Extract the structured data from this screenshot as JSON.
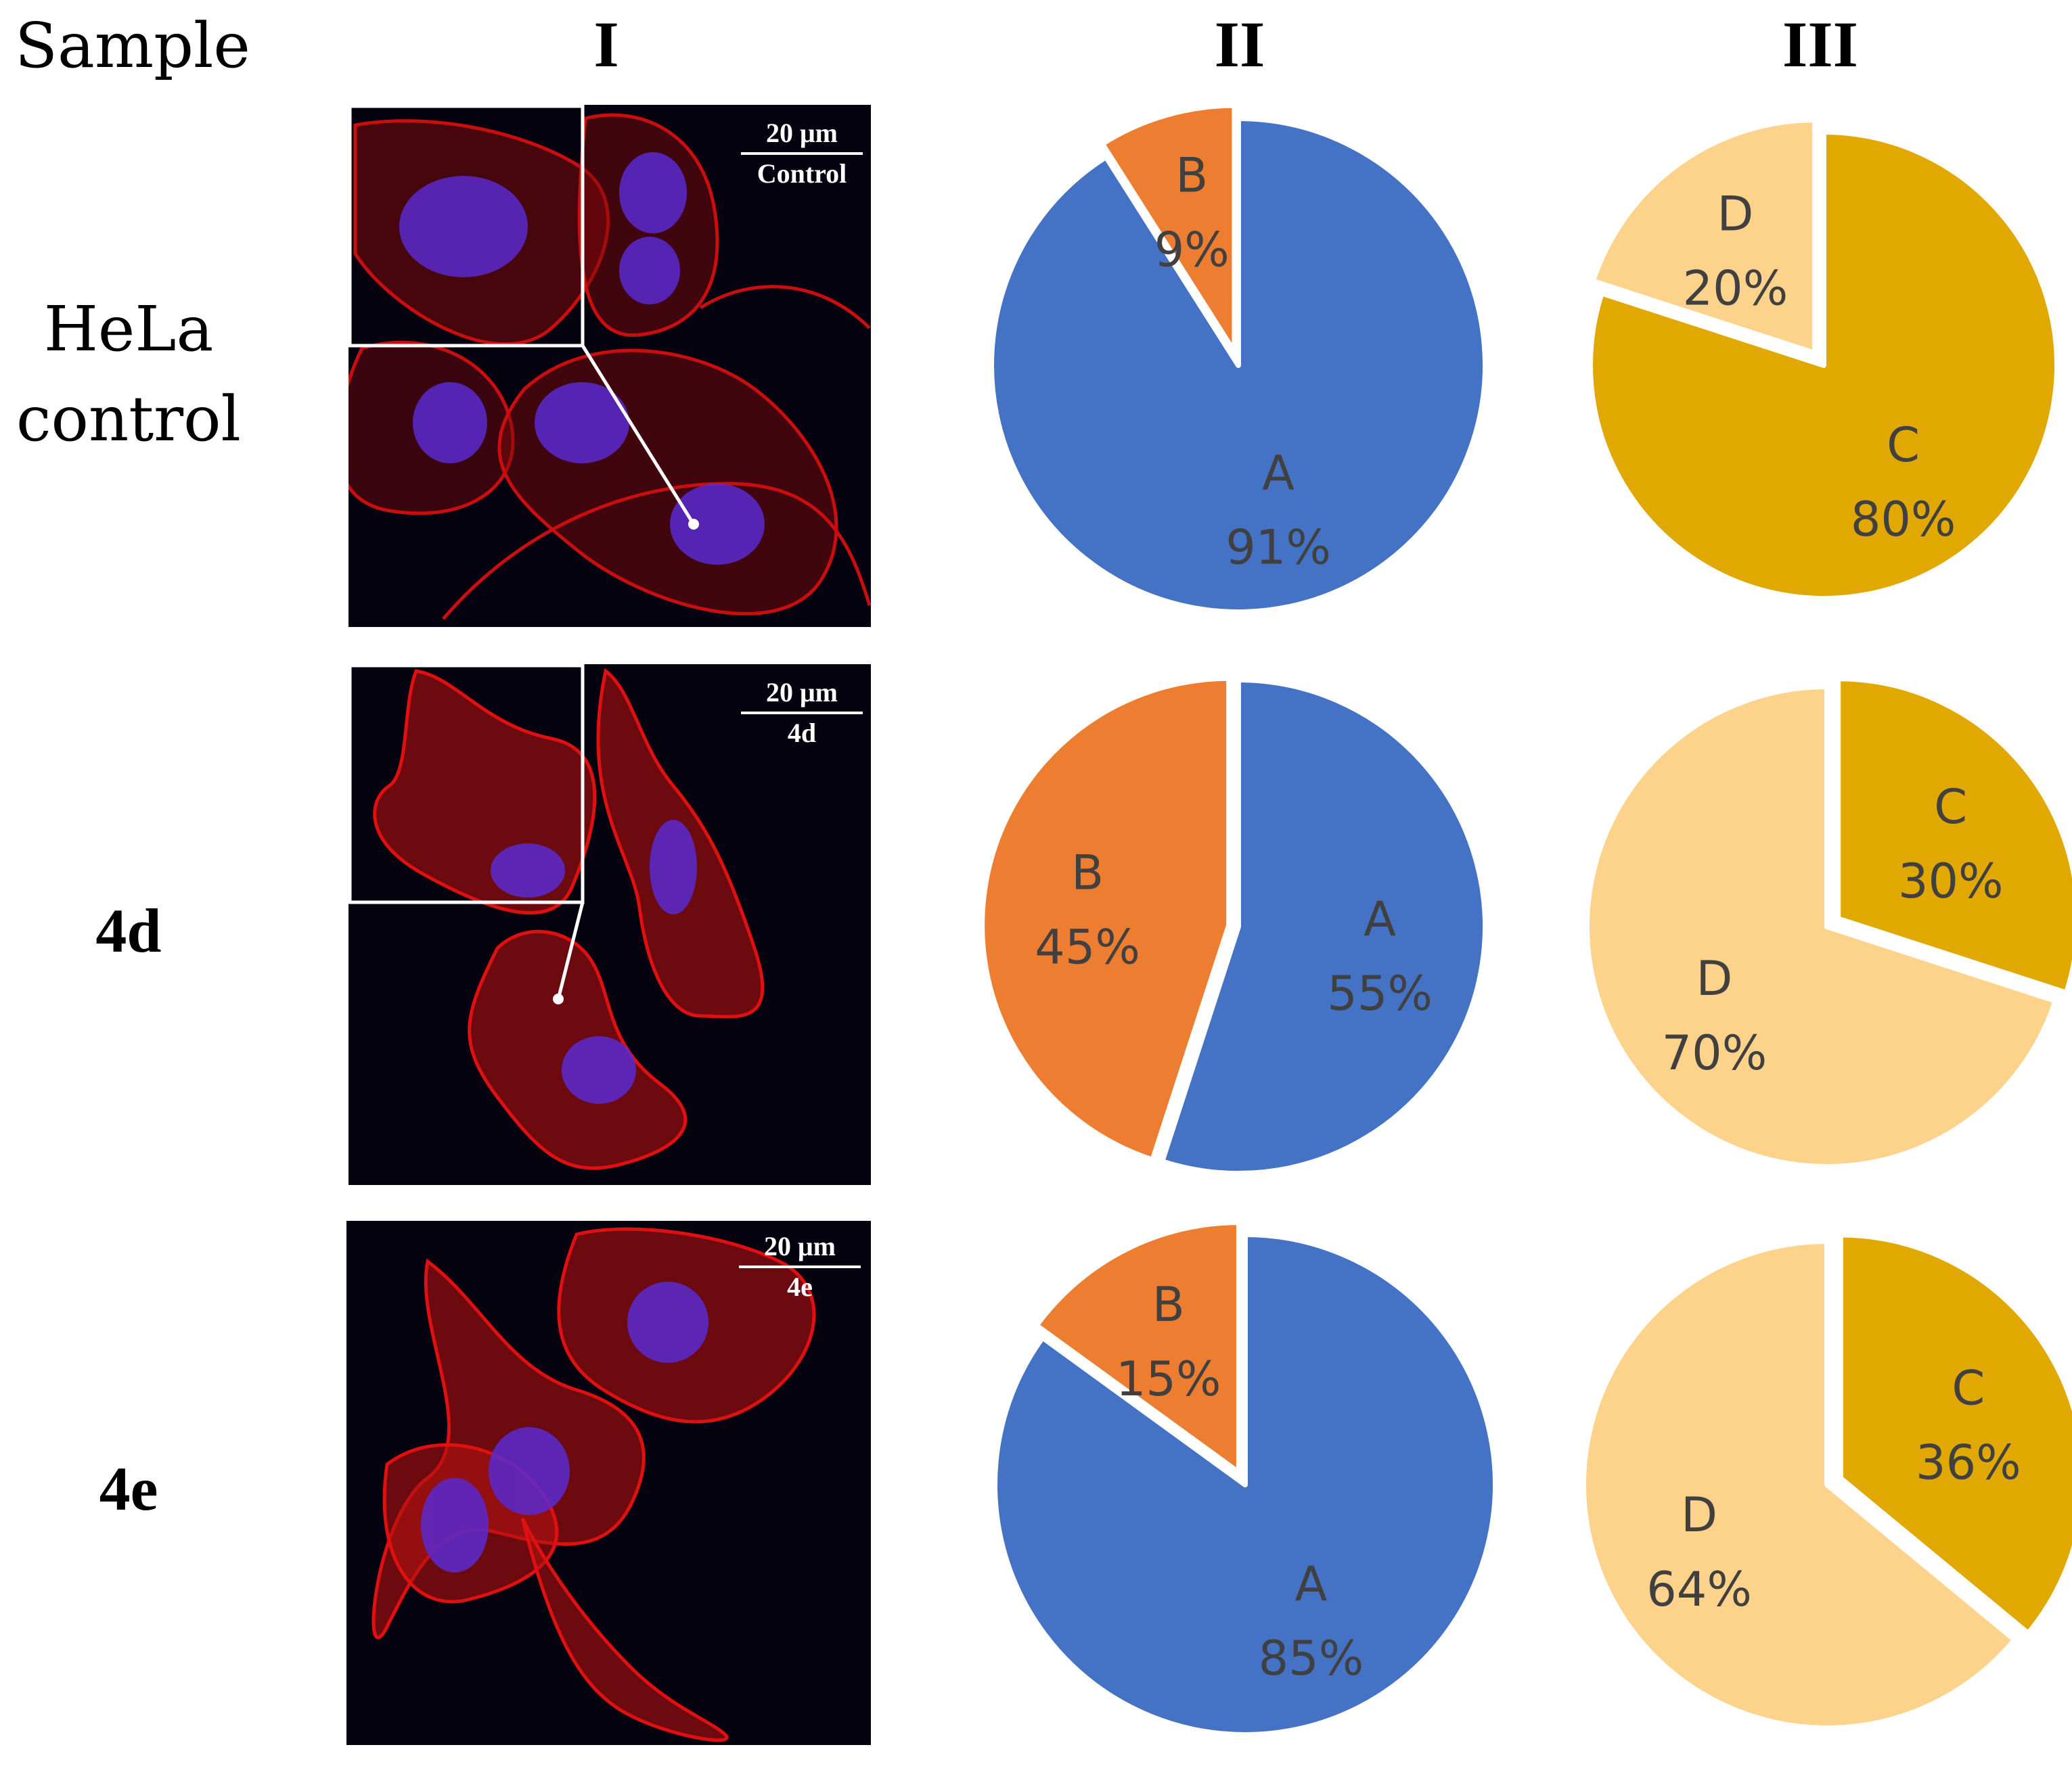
{
  "headers": {
    "sample": "Sample",
    "col1": "I",
    "col2": "II",
    "col3": "III"
  },
  "rows": [
    {
      "label_line1": "HeLa",
      "label_line2": "control",
      "scale_text": "20 μm",
      "image_label": "Control"
    },
    {
      "label_line1": "4d",
      "label_line2": "",
      "scale_text": "20 μm",
      "image_label": "4d"
    },
    {
      "label_line1": "4e",
      "label_line2": "",
      "scale_text": "20 μm",
      "image_label": "4e"
    }
  ],
  "colors": {
    "A": "#4472C4",
    "B": "#ED7D31",
    "C": "#E0A800",
    "D": "#FDD28A",
    "micro_bg": "#050210",
    "actin": "#E01010",
    "nucleus": "#5A2AD0"
  },
  "chart_data": [
    {
      "type": "pie",
      "row": "HeLa control",
      "column": "II",
      "categories": [
        "A",
        "B"
      ],
      "values": [
        91,
        9
      ],
      "labels": [
        "91%",
        "9%"
      ]
    },
    {
      "type": "pie",
      "row": "HeLa control",
      "column": "III",
      "categories": [
        "C",
        "D"
      ],
      "values": [
        80,
        20
      ],
      "labels": [
        "80%",
        "20%"
      ]
    },
    {
      "type": "pie",
      "row": "4d",
      "column": "II",
      "categories": [
        "A",
        "B"
      ],
      "values": [
        55,
        45
      ],
      "labels": [
        "55%",
        "45%"
      ]
    },
    {
      "type": "pie",
      "row": "4d",
      "column": "III",
      "categories": [
        "C",
        "D"
      ],
      "values": [
        30,
        70
      ],
      "labels": [
        "30%",
        "70%"
      ]
    },
    {
      "type": "pie",
      "row": "4e",
      "column": "II",
      "categories": [
        "A",
        "B"
      ],
      "values": [
        85,
        15
      ],
      "labels": [
        "85%",
        "15%"
      ]
    },
    {
      "type": "pie",
      "row": "4e",
      "column": "III",
      "categories": [
        "C",
        "D"
      ],
      "values": [
        36,
        64
      ],
      "labels": [
        "36%",
        "64%"
      ]
    }
  ]
}
